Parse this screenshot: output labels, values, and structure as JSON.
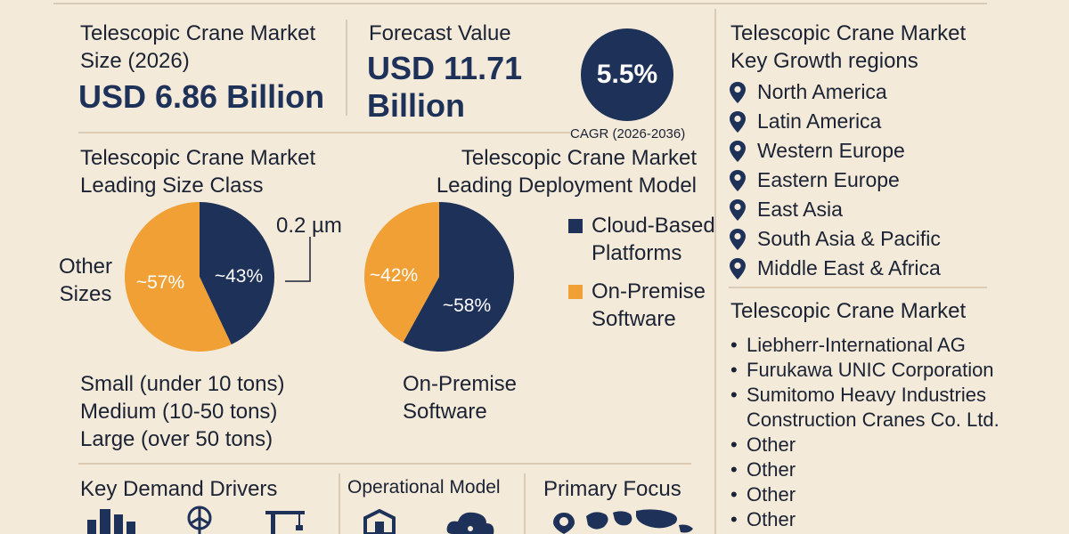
{
  "colors": {
    "navy": "#1e3159",
    "orange": "#f0a034",
    "background": "#f4ead9"
  },
  "market_size": {
    "label_line1": "Telescopic Crane Market",
    "label_line2": "Size (2026)",
    "value": "USD 6.86 Billion"
  },
  "forecast": {
    "label": "Forecast Value",
    "value_line1": "USD 11.71",
    "value_line2": "Billion"
  },
  "cagr": {
    "value": "5.5%",
    "caption": "CAGR (2026-2036)"
  },
  "regions": {
    "title_line1": "Telescopic Crane Market",
    "title_line2": "Key Growth regions",
    "items": [
      "North America",
      "Latin America",
      "Western Europe",
      "Eastern Europe",
      "East Asia",
      "South Asia & Pacific",
      "Middle East & Africa"
    ]
  },
  "companies": {
    "title": "Telescopic Crane Market",
    "items": [
      "Liebherr-International AG",
      "Furukawa UNIC Corporation",
      "Sumitomo Heavy Industries",
      "Construction Cranes Co. Ltd.",
      "Other",
      "Other",
      "Other",
      "Other"
    ]
  },
  "size_class": {
    "title_line1": "Telescopic Crane Market",
    "title_line2": "Leading Size Class",
    "annotation": "0.2 µm",
    "other_label_line1": "Other",
    "other_label_line2": "Sizes",
    "list": [
      "Small (under 10 tons)",
      "Medium (10-50 tons)",
      "Large (over 50 tons)"
    ]
  },
  "deployment": {
    "title_line1": "Telescopic Crane Market",
    "title_line2": "Leading Deployment Model",
    "legend": [
      {
        "line1": "Cloud-Based",
        "line2": "Platforms",
        "color": "#1e3159"
      },
      {
        "line1": "On-Premise",
        "line2": "Software",
        "color": "#f0a034"
      }
    ],
    "below_label_line1": "On-Premise",
    "below_label_line2": "Software"
  },
  "bottom": {
    "drivers": "Key Demand Drivers",
    "operational": "Operational Model",
    "focus": "Primary Focus"
  },
  "chart_data": [
    {
      "type": "pie",
      "title": "Telescopic Crane Market Leading Size Class",
      "slices": [
        {
          "label": "~43%",
          "value": 43,
          "color": "#1e3159"
        },
        {
          "label": "~57%",
          "value": 57,
          "color": "#f0a034"
        }
      ]
    },
    {
      "type": "pie",
      "title": "Telescopic Crane Market Leading Deployment Model",
      "slices": [
        {
          "label": "~58%",
          "value": 58,
          "color": "#1e3159"
        },
        {
          "label": "~42%",
          "value": 42,
          "color": "#f0a034"
        }
      ]
    }
  ]
}
